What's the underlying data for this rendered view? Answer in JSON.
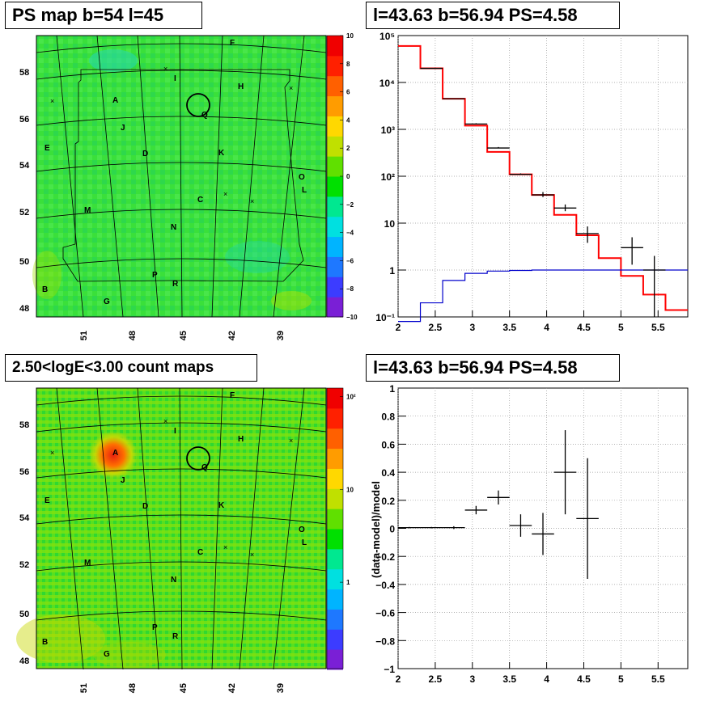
{
  "titles": {
    "map_top": "PS map b=54 l=45",
    "spec_top": "l=43.63 b=56.94 PS=4.58",
    "map_bottom": "2.50<logE<3.00 count maps",
    "spec_bottom": "l=43.63 b=56.94 PS=4.58"
  },
  "colorscale_top": {
    "labels": [
      "10",
      "8",
      "6",
      "4",
      "2",
      "0",
      "−2",
      "−4",
      "−6",
      "−8",
      "−10"
    ],
    "min": -10,
    "max": 10,
    "colors": [
      "#7a1fd6",
      "#3c3cff",
      "#1e78ff",
      "#00b4ff",
      "#00e0e0",
      "#00e890",
      "#00e000",
      "#60e000",
      "#c0e000",
      "#ffd800",
      "#ff9c00",
      "#ff6000",
      "#ff2000",
      "#f00000"
    ]
  },
  "colorscale_bottom": {
    "labels": [
      "10²",
      "10",
      "1"
    ],
    "colors": [
      "#7a1fd6",
      "#3c3cff",
      "#1e78ff",
      "#00b4ff",
      "#00e0e0",
      "#00e890",
      "#00e000",
      "#60e000",
      "#c0e000",
      "#ffd800",
      "#ff9c00",
      "#ff6000",
      "#ff2000",
      "#f00000"
    ]
  },
  "map_axes": {
    "x_ticks": [
      "51",
      "48",
      "45",
      "42",
      "39"
    ],
    "y_ticks_top": [
      "58",
      "56",
      "54",
      "52",
      "50",
      "48"
    ],
    "y_ticks_bottom": [
      "58",
      "56",
      "54",
      "52",
      "50",
      "48"
    ]
  },
  "map_labels": [
    "F",
    "I",
    "H",
    "A",
    "Q",
    "J",
    "E",
    "D",
    "K",
    "O",
    "L",
    "C",
    "M",
    "N",
    "B",
    "P",
    "R",
    "G"
  ],
  "chart_data": [
    {
      "type": "line",
      "title": "l=43.63 b=56.94 PS=4.58",
      "xlabel": "",
      "ylabel": "",
      "xlim": [
        2,
        5.9
      ],
      "ylim": [
        0.1,
        100000
      ],
      "yscale": "log",
      "x_ticks": [
        "2",
        "2.5",
        "3",
        "3.5",
        "4",
        "4.5",
        "5",
        "5.5"
      ],
      "y_ticks": [
        "10⁵",
        "10⁴",
        "10³",
        "10²",
        "10",
        "1",
        "10⁻¹"
      ],
      "series": [
        {
          "style": "step-red",
          "edges": [
            2.0,
            2.3,
            2.6,
            2.9,
            3.2,
            3.5,
            3.8,
            4.1,
            4.4,
            4.7,
            5.0,
            5.3,
            5.6,
            5.9
          ],
          "values": [
            60000,
            20000,
            4500,
            1200,
            330,
            110,
            40,
            15,
            5.5,
            1.8,
            0.75,
            0.3,
            0.14
          ]
        },
        {
          "style": "step-blue",
          "edges": [
            2.0,
            2.3,
            2.6,
            2.9,
            3.2,
            3.5,
            3.8,
            4.1,
            4.4,
            4.7,
            5.0,
            5.3,
            5.6,
            5.9
          ],
          "values": [
            0.08,
            0.2,
            0.6,
            0.85,
            0.95,
            0.98,
            1.0,
            1.0,
            1.0,
            1.0,
            1.0,
            1.0,
            1.0
          ]
        },
        {
          "style": "points-black",
          "x": [
            2.45,
            2.75,
            3.05,
            3.35,
            3.65,
            3.95,
            4.25,
            4.55,
            5.15,
            5.45
          ],
          "xerr": 0.15,
          "y": [
            20000,
            4500,
            1300,
            400,
            110,
            40,
            21,
            6,
            3,
            1
          ],
          "ylo": [
            20000,
            4500,
            1300,
            400,
            110,
            36,
            18,
            3.8,
            1.3,
            0.1
          ],
          "yhi": [
            20000,
            4500,
            1350,
            420,
            115,
            46,
            25,
            8.5,
            5,
            2
          ]
        }
      ]
    },
    {
      "type": "scatter",
      "title": "l=43.63 b=56.94 PS=4.58",
      "xlabel": "",
      "ylabel": "(data-model)/model",
      "xlim": [
        2,
        5.9
      ],
      "ylim": [
        -1,
        1
      ],
      "x_ticks": [
        "2",
        "2.5",
        "3",
        "3.5",
        "4",
        "4.5",
        "5",
        "5.5"
      ],
      "y_ticks": [
        "1",
        "0.8",
        "0.6",
        "0.4",
        "0.2",
        "0",
        "−0.2",
        "−0.4",
        "−0.6",
        "−0.8",
        "−1"
      ],
      "points": {
        "x": [
          2.15,
          2.45,
          2.75,
          3.05,
          3.35,
          3.65,
          3.95,
          4.25,
          4.55
        ],
        "xerr": 0.15,
        "y": [
          0.005,
          0.005,
          0.005,
          0.13,
          0.22,
          0.02,
          -0.04,
          0.4,
          0.07
        ],
        "err": [
          0.005,
          0.005,
          0.01,
          0.03,
          0.05,
          0.08,
          0.15,
          0.3,
          0.43
        ]
      }
    }
  ]
}
